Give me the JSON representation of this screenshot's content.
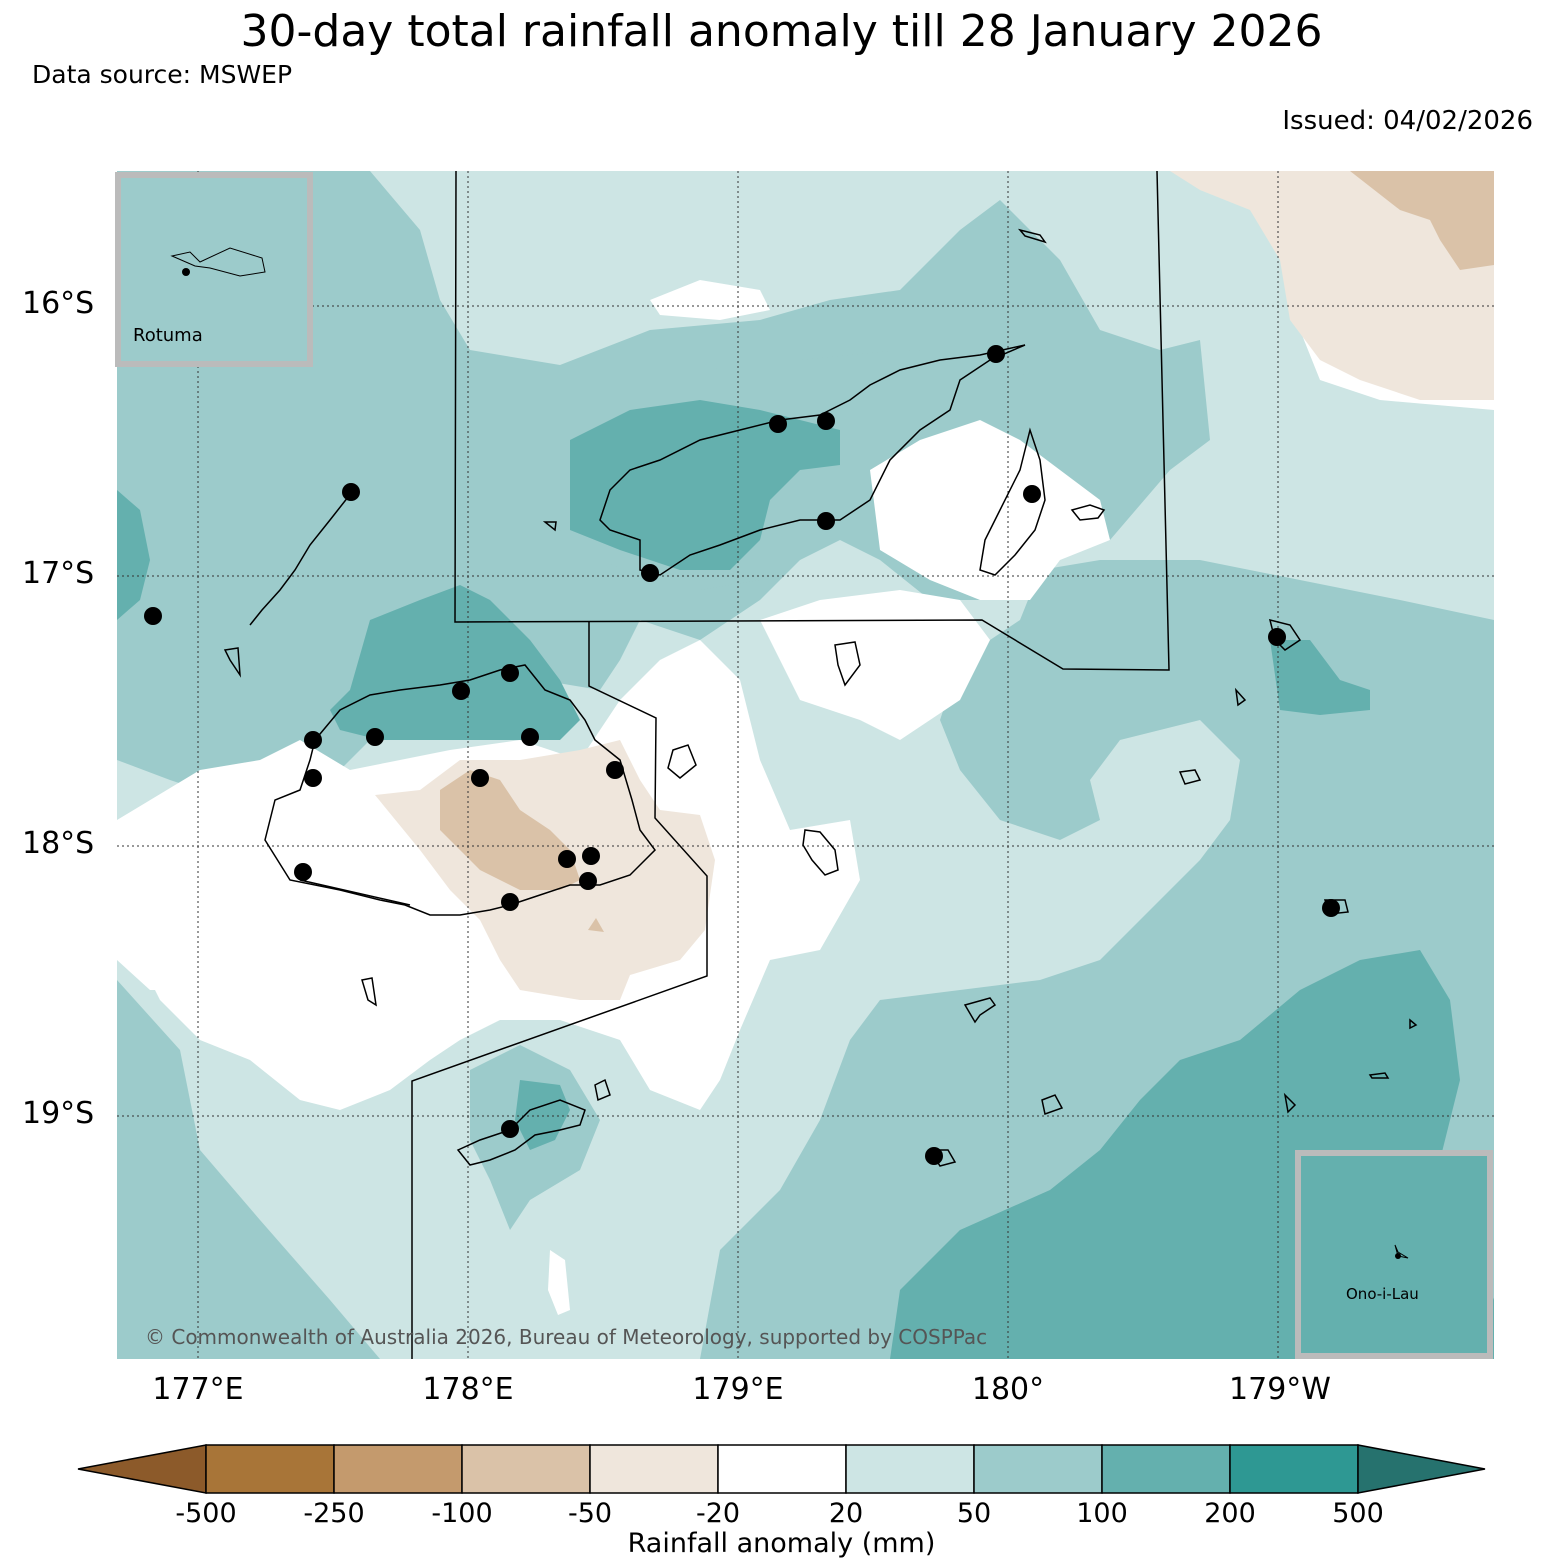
{
  "header": {
    "title": "30-day total rainfall anomaly till 28 January 2026",
    "data_source": "Data source: MSWEP",
    "issued": "Issued: 04/02/2026"
  },
  "map": {
    "lat_labels": [
      "16°S",
      "17°S",
      "18°S",
      "19°S"
    ],
    "lon_labels": [
      "177°E",
      "178°E",
      "179°E",
      "180°",
      "179°W"
    ],
    "insets": [
      {
        "name": "Rotuma"
      },
      {
        "name": "Ono-i-Lau"
      }
    ],
    "copyright": "© Commonwealth of Australia 2026, Bureau of Meteorology, supported by COSPPac"
  },
  "colorbar": {
    "title": "Rainfall anomaly (mm)",
    "ticks": [
      "-500",
      "-250",
      "-100",
      "-50",
      "-20",
      "20",
      "50",
      "100",
      "200",
      "500"
    ],
    "colors": [
      "#8c5a2a",
      "#a87538",
      "#c49a6d",
      "#dac2a8",
      "#efe6dc",
      "#ffffff",
      "#cde5e4",
      "#9ccbcb",
      "#64b0ae",
      "#2e9893",
      "#26726e"
    ]
  }
}
